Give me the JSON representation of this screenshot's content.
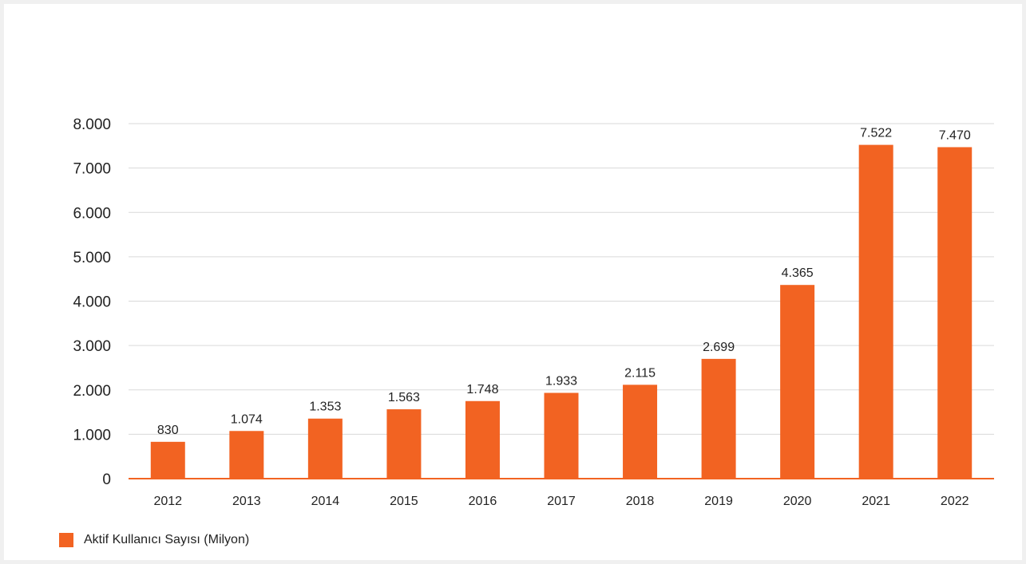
{
  "colors": {
    "bar": "#f26322",
    "grid": "#d9d9d9",
    "baseline": "#f26322"
  },
  "legend": {
    "label": "Aktif Kullanıcı Sayısı (Milyon)"
  },
  "chart_data": {
    "type": "bar",
    "categories": [
      "2012",
      "2013",
      "2014",
      "2015",
      "2016",
      "2017",
      "2018",
      "2019",
      "2020",
      "2021",
      "2022"
    ],
    "series": [
      {
        "name": "Aktif Kullanıcı Sayısı (Milyon)",
        "values": [
          830,
          1074,
          1353,
          1563,
          1748,
          1933,
          2115,
          2699,
          4365,
          7522,
          7470
        ],
        "value_labels": [
          "830",
          "1.074",
          "1.353",
          "1.563",
          "1.748",
          "1.933",
          "2.115",
          "2.699",
          "4.365",
          "7.522",
          "7.470"
        ]
      }
    ],
    "ylim": [
      0,
      8000
    ],
    "yticks": [
      0,
      1000,
      2000,
      3000,
      4000,
      5000,
      6000,
      7000,
      8000
    ],
    "ytick_labels": [
      "0",
      "1.000",
      "2.000",
      "3.000",
      "4.000",
      "5.000",
      "6.000",
      "7.000",
      "8.000"
    ],
    "grid": true,
    "legend_position": "bottom-left"
  }
}
